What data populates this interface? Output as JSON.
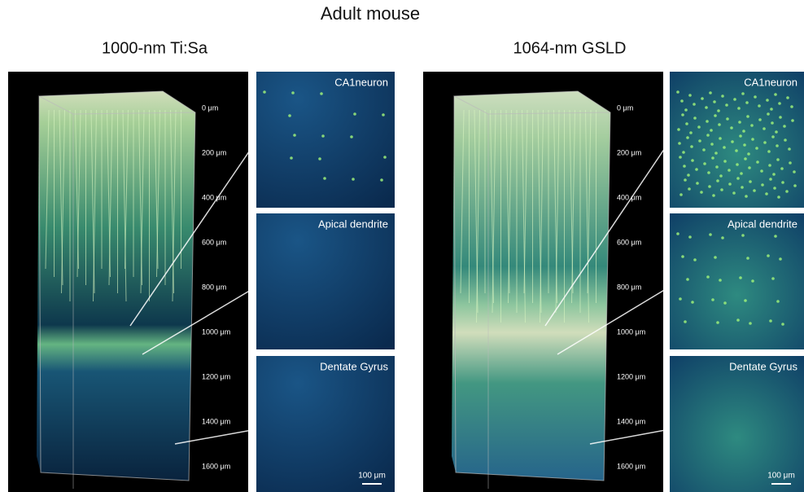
{
  "title": "Adult mouse",
  "panels": [
    {
      "title": "1000-nm Ti:Sa",
      "depth_labels": [
        "0 μm",
        "200 μm",
        "400 μm",
        "600 μm",
        "800 μm",
        "1000 μm",
        "1200 μm",
        "1400 μm",
        "1600 μm"
      ],
      "insets": [
        {
          "label": "CA1neuron"
        },
        {
          "label": "Apical dendrite"
        },
        {
          "label": "Dentate Gyrus"
        }
      ],
      "scale_bar": "100 μm"
    },
    {
      "title": "1064-nm GSLD",
      "depth_labels": [
        "0 μm",
        "200 μm",
        "400 μm",
        "600 μm",
        "800 μm",
        "1000 μm",
        "1200 μm",
        "1400 μm",
        "1600 μm"
      ],
      "insets": [
        {
          "label": "CA1neuron"
        },
        {
          "label": "Apical dendrite"
        },
        {
          "label": "Dentate Gyrus"
        }
      ],
      "scale_bar": "100 μm"
    }
  ]
}
